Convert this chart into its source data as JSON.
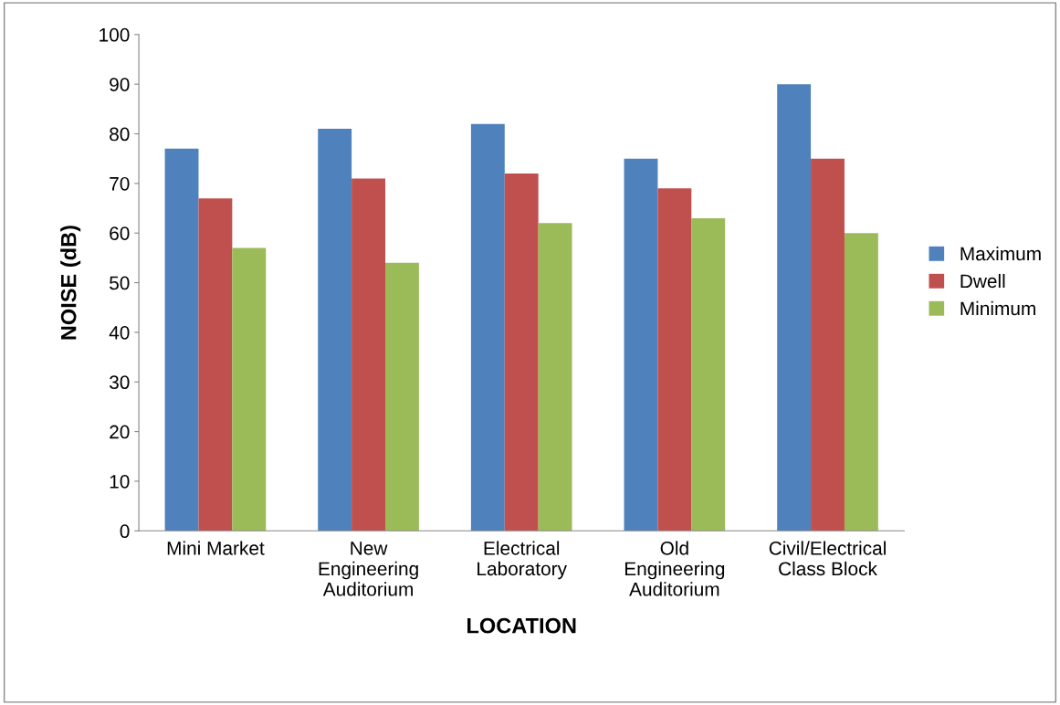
{
  "chart_data": {
    "type": "bar",
    "xlabel": "LOCATION",
    "ylabel": "NOISE (dB)",
    "categories": [
      "Mini Market",
      "New\nEngineering\nAuditorium",
      "Electrical\nLaboratory",
      "Old\nEngineering\nAuditorium",
      "Civil/Electrical\nClass Block"
    ],
    "series": [
      {
        "name": "Maximum",
        "color": "#4f81bd",
        "values": [
          77,
          81,
          82,
          75,
          90
        ]
      },
      {
        "name": "Dwell",
        "color": "#c0504d",
        "values": [
          67,
          71,
          72,
          69,
          75
        ]
      },
      {
        "name": "Minimum",
        "color": "#9bbb59",
        "values": [
          57,
          54,
          62,
          63,
          60
        ]
      }
    ],
    "ylim": [
      0,
      100
    ],
    "yticks": [
      0,
      10,
      20,
      30,
      40,
      50,
      60,
      70,
      80,
      90,
      100
    ],
    "grid": false,
    "legend": "right"
  }
}
